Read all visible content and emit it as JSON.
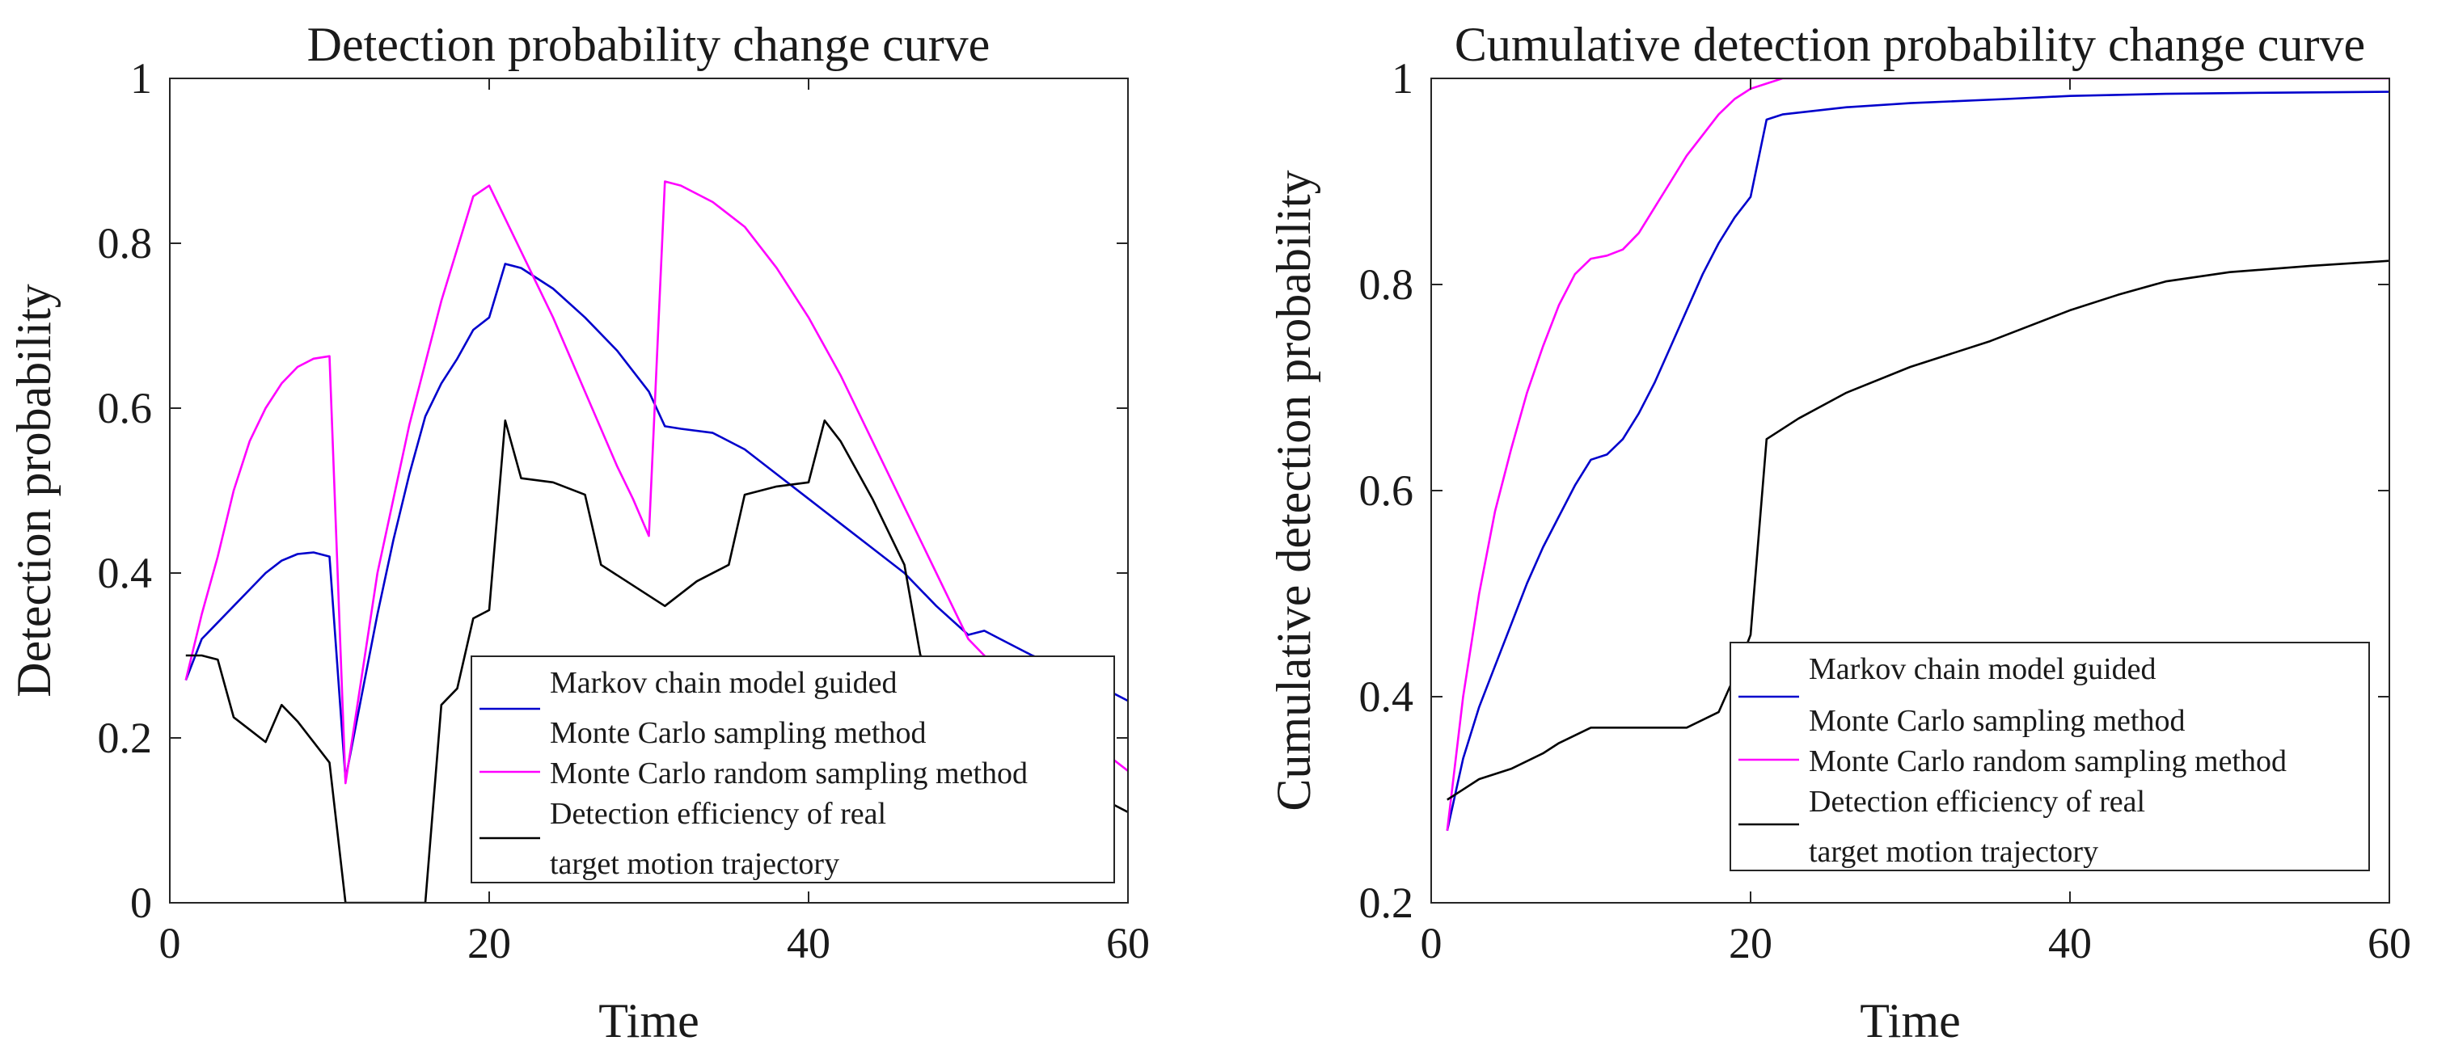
{
  "chart_data": [
    {
      "type": "line",
      "title": "Detection probability change curve",
      "xlabel": "Time",
      "ylabel": "Detection probability",
      "xlim": [
        0,
        60
      ],
      "ylim": [
        0,
        1
      ],
      "xticks": [
        0,
        20,
        40,
        60
      ],
      "yticks": [
        0,
        0.2,
        0.4,
        0.6,
        0.8,
        1
      ],
      "ytick_labels": [
        "0",
        "0.2",
        "0.4",
        "0.6",
        "0.8",
        "1"
      ],
      "grid": false,
      "legend_position": "bottom-right",
      "series": [
        {
          "name_lines": [
            "Markov chain model guided",
            "Monte Carlo sampling method"
          ],
          "color": "#0000cc",
          "points": [
            [
              1,
              0.27
            ],
            [
              2,
              0.32
            ],
            [
              3,
              0.34
            ],
            [
              4,
              0.36
            ],
            [
              5,
              0.38
            ],
            [
              6,
              0.4
            ],
            [
              7,
              0.415
            ],
            [
              8,
              0.423
            ],
            [
              9,
              0.425
            ],
            [
              10,
              0.42
            ],
            [
              11,
              0.15
            ],
            [
              12,
              0.25
            ],
            [
              13,
              0.35
            ],
            [
              14,
              0.44
            ],
            [
              15,
              0.52
            ],
            [
              16,
              0.59
            ],
            [
              17,
              0.63
            ],
            [
              18,
              0.66
            ],
            [
              19,
              0.695
            ],
            [
              20,
              0.71
            ],
            [
              21,
              0.775
            ],
            [
              22,
              0.77
            ],
            [
              24,
              0.745
            ],
            [
              26,
              0.71
            ],
            [
              28,
              0.67
            ],
            [
              30,
              0.62
            ],
            [
              31,
              0.578
            ],
            [
              32,
              0.575
            ],
            [
              34,
              0.57
            ],
            [
              36,
              0.55
            ],
            [
              38,
              0.52
            ],
            [
              40,
              0.49
            ],
            [
              42,
              0.46
            ],
            [
              44,
              0.43
            ],
            [
              46,
              0.4
            ],
            [
              48,
              0.36
            ],
            [
              50,
              0.325
            ],
            [
              51,
              0.33
            ],
            [
              52,
              0.32
            ],
            [
              54,
              0.3
            ],
            [
              56,
              0.285
            ],
            [
              58,
              0.265
            ],
            [
              60,
              0.245
            ]
          ]
        },
        {
          "name_lines": [
            "Monte Carlo random sampling method"
          ],
          "color": "#ff00ff",
          "points": [
            [
              1,
              0.27
            ],
            [
              2,
              0.35
            ],
            [
              3,
              0.42
            ],
            [
              4,
              0.5
            ],
            [
              5,
              0.56
            ],
            [
              6,
              0.6
            ],
            [
              7,
              0.63
            ],
            [
              8,
              0.65
            ],
            [
              9,
              0.66
            ],
            [
              10,
              0.663
            ],
            [
              11,
              0.145
            ],
            [
              13,
              0.4
            ],
            [
              15,
              0.58
            ],
            [
              17,
              0.73
            ],
            [
              19,
              0.857
            ],
            [
              20,
              0.87
            ],
            [
              21,
              0.83
            ],
            [
              22,
              0.79
            ],
            [
              24,
              0.71
            ],
            [
              26,
              0.62
            ],
            [
              28,
              0.53
            ],
            [
              29,
              0.49
            ],
            [
              30,
              0.445
            ],
            [
              31,
              0.875
            ],
            [
              32,
              0.87
            ],
            [
              34,
              0.85
            ],
            [
              36,
              0.82
            ],
            [
              38,
              0.77
            ],
            [
              40,
              0.71
            ],
            [
              42,
              0.64
            ],
            [
              44,
              0.56
            ],
            [
              46,
              0.48
            ],
            [
              48,
              0.4
            ],
            [
              50,
              0.32
            ],
            [
              52,
              0.28
            ],
            [
              54,
              0.25
            ],
            [
              56,
              0.23
            ],
            [
              58,
              0.19
            ],
            [
              60,
              0.16
            ]
          ]
        },
        {
          "name_lines": [
            "Detection efficiency of real",
            "target motion trajectory"
          ],
          "color": "#000000",
          "points": [
            [
              1,
              0.3
            ],
            [
              2,
              0.3
            ],
            [
              3,
              0.295
            ],
            [
              4,
              0.225
            ],
            [
              5,
              0.21
            ],
            [
              6,
              0.195
            ],
            [
              7,
              0.24
            ],
            [
              8,
              0.22
            ],
            [
              9,
              0.195
            ],
            [
              10,
              0.17
            ],
            [
              11,
              0.0
            ],
            [
              16,
              0.0
            ],
            [
              17,
              0.24
            ],
            [
              18,
              0.26
            ],
            [
              19,
              0.345
            ],
            [
              20,
              0.355
            ],
            [
              21,
              0.585
            ],
            [
              22,
              0.515
            ],
            [
              24,
              0.51
            ],
            [
              26,
              0.495
            ],
            [
              27,
              0.41
            ],
            [
              31,
              0.36
            ],
            [
              33,
              0.39
            ],
            [
              35,
              0.41
            ],
            [
              36,
              0.495
            ],
            [
              38,
              0.505
            ],
            [
              40,
              0.51
            ],
            [
              41,
              0.585
            ],
            [
              42,
              0.56
            ],
            [
              44,
              0.49
            ],
            [
              46,
              0.41
            ],
            [
              47,
              0.3
            ],
            [
              50,
              0.26
            ],
            [
              53,
              0.24
            ],
            [
              55,
              0.215
            ],
            [
              58,
              0.13
            ],
            [
              60,
              0.11
            ]
          ]
        }
      ]
    },
    {
      "type": "line",
      "title": "Cumulative detection probability change curve",
      "xlabel": "Time",
      "ylabel": "Cumulative detection probability",
      "xlim": [
        0,
        60
      ],
      "ylim": [
        0.2,
        1
      ],
      "xticks": [
        0,
        20,
        40,
        60
      ],
      "yticks": [
        0.2,
        0.4,
        0.6,
        0.8,
        1
      ],
      "ytick_labels": [
        "0.2",
        "0.4",
        "0.6",
        "0.8",
        "1"
      ],
      "grid": false,
      "legend_position": "bottom-right",
      "series": [
        {
          "name_lines": [
            "Markov chain model guided",
            "Monte Carlo sampling method"
          ],
          "color": "#0000cc",
          "points": [
            [
              1,
              0.27
            ],
            [
              2,
              0.34
            ],
            [
              3,
              0.39
            ],
            [
              4,
              0.43
            ],
            [
              5,
              0.47
            ],
            [
              6,
              0.51
            ],
            [
              7,
              0.545
            ],
            [
              8,
              0.575
            ],
            [
              9,
              0.605
            ],
            [
              10,
              0.63
            ],
            [
              11,
              0.635
            ],
            [
              12,
              0.65
            ],
            [
              13,
              0.675
            ],
            [
              14,
              0.705
            ],
            [
              15,
              0.74
            ],
            [
              16,
              0.775
            ],
            [
              17,
              0.81
            ],
            [
              18,
              0.84
            ],
            [
              19,
              0.865
            ],
            [
              20,
              0.885
            ],
            [
              21,
              0.96
            ],
            [
              22,
              0.965
            ],
            [
              26,
              0.972
            ],
            [
              30,
              0.976
            ],
            [
              36,
              0.98
            ],
            [
              40,
              0.983
            ],
            [
              46,
              0.985
            ],
            [
              52,
              0.986
            ],
            [
              60,
              0.987
            ]
          ]
        },
        {
          "name_lines": [
            "Monte Carlo random sampling method"
          ],
          "color": "#ff00ff",
          "points": [
            [
              1,
              0.27
            ],
            [
              2,
              0.4
            ],
            [
              3,
              0.5
            ],
            [
              4,
              0.58
            ],
            [
              5,
              0.64
            ],
            [
              6,
              0.695
            ],
            [
              7,
              0.74
            ],
            [
              8,
              0.78
            ],
            [
              9,
              0.81
            ],
            [
              10,
              0.825
            ],
            [
              11,
              0.828
            ],
            [
              12,
              0.834
            ],
            [
              13,
              0.85
            ],
            [
              14,
              0.875
            ],
            [
              15,
              0.9
            ],
            [
              16,
              0.925
            ],
            [
              17,
              0.945
            ],
            [
              18,
              0.965
            ],
            [
              19,
              0.98
            ],
            [
              20,
              0.99
            ],
            [
              21,
              0.995
            ],
            [
              22,
              1.0
            ],
            [
              60,
              1.0
            ]
          ]
        },
        {
          "name_lines": [
            "Detection efficiency of real",
            "target motion trajectory"
          ],
          "color": "#000000",
          "points": [
            [
              1,
              0.3
            ],
            [
              2,
              0.31
            ],
            [
              3,
              0.32
            ],
            [
              5,
              0.33
            ],
            [
              7,
              0.345
            ],
            [
              8,
              0.355
            ],
            [
              10,
              0.37
            ],
            [
              12,
              0.37
            ],
            [
              14,
              0.37
            ],
            [
              16,
              0.37
            ],
            [
              18,
              0.385
            ],
            [
              19,
              0.42
            ],
            [
              20,
              0.46
            ],
            [
              21,
              0.65
            ],
            [
              23,
              0.67
            ],
            [
              26,
              0.695
            ],
            [
              30,
              0.72
            ],
            [
              35,
              0.745
            ],
            [
              40,
              0.775
            ],
            [
              43,
              0.79
            ],
            [
              46,
              0.803
            ],
            [
              50,
              0.812
            ],
            [
              55,
              0.818
            ],
            [
              60,
              0.823
            ]
          ]
        }
      ]
    }
  ]
}
